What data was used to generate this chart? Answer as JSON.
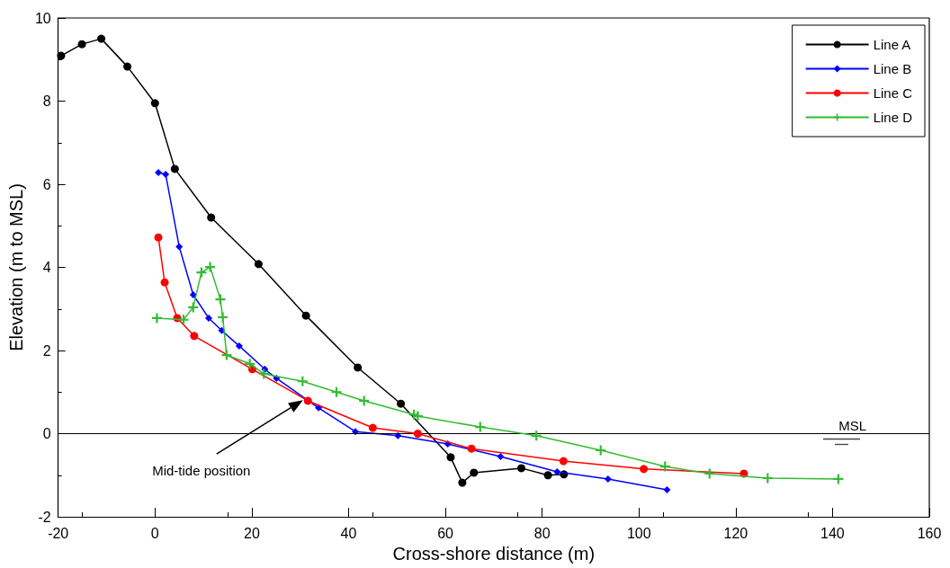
{
  "chart_data": {
    "type": "line",
    "xlabel": "Cross-shore distance (m)",
    "ylabel": "Elevation (m to MSL)",
    "xlim": [
      -20,
      160
    ],
    "xticks": [
      -20,
      0,
      20,
      40,
      60,
      80,
      100,
      120,
      140,
      160
    ],
    "ylim": [
      -2,
      10
    ],
    "yticks": [
      -2,
      0,
      2,
      4,
      6,
      8,
      10
    ],
    "grid": false,
    "legend": "top right",
    "line_style": "solid",
    "series": [
      {
        "name": "Line A",
        "color": "#000000",
        "marker": "circle",
        "x": [
          -19.4,
          -15.1,
          -11.1,
          -5.7,
          0,
          4.1,
          11.6,
          21.4,
          31.2,
          41.9,
          50.8,
          61.1,
          63.5,
          65.9,
          75.7,
          81.2,
          84.5
        ],
        "values": [
          9.09,
          9.37,
          9.5,
          8.83,
          7.95,
          6.37,
          5.2,
          4.08,
          2.84,
          1.59,
          0.72,
          -0.57,
          -1.18,
          -0.94,
          -0.83,
          -1.0,
          -0.98
        ]
      },
      {
        "name": "Line B",
        "color": "#0000ff",
        "marker": "diamond",
        "x": [
          0.7,
          2.2,
          5.0,
          7.9,
          11.1,
          13.8,
          17.4,
          22.7,
          25.1,
          33.8,
          41.4,
          50.2,
          60.5,
          71.4,
          83.1,
          93.6,
          105.8
        ],
        "values": [
          6.28,
          6.24,
          4.5,
          3.34,
          2.78,
          2.48,
          2.11,
          1.55,
          1.33,
          0.62,
          0.05,
          -0.05,
          -0.25,
          -0.55,
          -0.92,
          -1.09,
          -1.35
        ]
      },
      {
        "name": "Line C",
        "color": "#ff0000",
        "marker": "circle",
        "x": [
          0.7,
          2.0,
          4.6,
          8.1,
          20.1,
          31.6,
          45.0,
          54.3,
          65.4,
          84.4,
          101,
          121.7
        ],
        "values": [
          4.72,
          3.64,
          2.78,
          2.35,
          1.55,
          0.79,
          0.14,
          0,
          -0.36,
          -0.66,
          -0.85,
          -0.96
        ]
      },
      {
        "name": "Line D",
        "color": "#33bb33",
        "marker": "cross",
        "x": [
          0.4,
          5.9,
          7.9,
          9.6,
          11.4,
          13.5,
          14.0,
          14.8,
          19.6,
          22.5,
          30.5,
          37.5,
          43.2,
          53.5,
          54.3,
          67.2,
          78.8,
          92.1,
          105.4,
          114.6,
          126.6,
          141.2
        ],
        "values": [
          2.78,
          2.74,
          3.04,
          3.88,
          4.01,
          3.23,
          2.8,
          1.89,
          1.68,
          1.44,
          1.26,
          1.0,
          0.79,
          0.46,
          0.42,
          0.16,
          -0.05,
          -0.4,
          -0.79,
          -0.96,
          -1.07,
          -1.09
        ]
      }
    ],
    "ref_lines": [
      {
        "axis": "y",
        "value": 0,
        "label": "MSL",
        "color": "#000000"
      }
    ],
    "annotations": [
      "Mid-tide position"
    ]
  }
}
